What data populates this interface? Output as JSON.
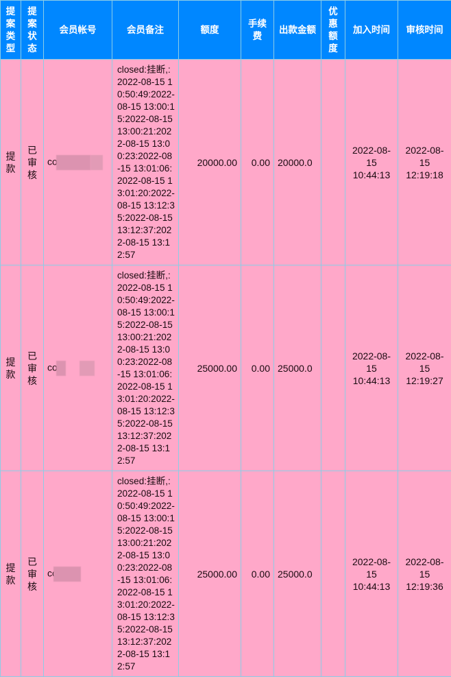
{
  "colors": {
    "header_bg": "#0087ff",
    "row_bg": "#ffa8c9",
    "border": "#8ccde6"
  },
  "table": {
    "headers": [
      "提案类型",
      "提案状态",
      "会员帐号",
      "会员备注",
      "额度",
      "手续费",
      "出款金额",
      "优惠额度",
      "加入时间",
      "审核时间"
    ],
    "rows": [
      {
        "type": "提款",
        "status": "已审核",
        "account": "cor",
        "remark": "closed:挂断,:2022-08-15 10:50:49:2022-08-15 13:00:15:2022-08-15 13:00:21:2022-08-15 13:00:23:2022-08-15 13:01:06:2022-08-15 13:01:20:2022-08-15 13:12:35:2022-08-15 13:12:37:2022-08-15 13:12:57",
        "amount": "20000.00",
        "fee": "0.00",
        "payout": "20000.0",
        "discount": "",
        "added": "2022-08-15 10:44:13",
        "reviewed": "2022-08-15 12:19:18"
      },
      {
        "type": "提款",
        "status": "已审核",
        "account": "cor",
        "remark": "closed:挂断,:2022-08-15 10:50:49:2022-08-15 13:00:15:2022-08-15 13:00:21:2022-08-15 13:00:23:2022-08-15 13:01:06:2022-08-15 13:01:20:2022-08-15 13:12:35:2022-08-15 13:12:37:2022-08-15 13:12:57",
        "amount": "25000.00",
        "fee": "0.00",
        "payout": "25000.0",
        "discount": "",
        "added": "2022-08-15 10:44:13",
        "reviewed": "2022-08-15 12:19:27"
      },
      {
        "type": "提款",
        "status": "已审核",
        "account": "co",
        "remark": "closed:挂断,:2022-08-15 10:50:49:2022-08-15 13:00:15:2022-08-15 13:00:21:2022-08-15 13:00:23:2022-08-15 13:01:06:2022-08-15 13:01:20:2022-08-15 13:12:35:2022-08-15 13:12:37:2022-08-15 13:12:57",
        "amount": "25000.00",
        "fee": "0.00",
        "payout": "25000.0",
        "discount": "",
        "added": "2022-08-15 10:44:13",
        "reviewed": "2022-08-15 12:19:36"
      }
    ]
  }
}
